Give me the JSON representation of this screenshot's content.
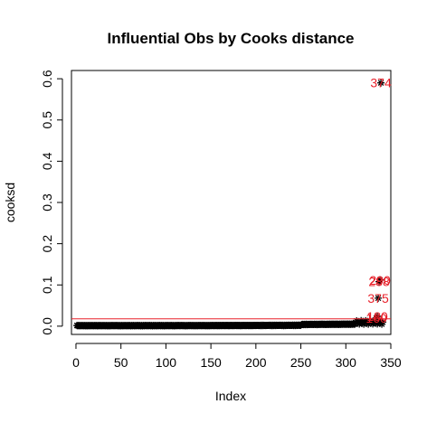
{
  "chart_data": {
    "type": "scatter",
    "title": "Influential Obs by Cooks distance",
    "xlabel": "Index",
    "ylabel": "cooksd",
    "xlim": [
      -5,
      350
    ],
    "ylim": [
      -0.02,
      0.62
    ],
    "xticks": [
      0,
      50,
      100,
      150,
      200,
      250,
      300,
      350
    ],
    "yticks": [
      0.0,
      0.1,
      0.2,
      0.3,
      0.4,
      0.5,
      0.6
    ],
    "ytick_labels": [
      "0.0",
      "0.1",
      "0.2",
      "0.3",
      "0.4",
      "0.5",
      "0.6"
    ],
    "threshold": 0.0177,
    "threshold_color": "#e8202a",
    "point_color": "#000000",
    "marker": "*",
    "n_obs": 341,
    "influential": [
      {
        "x": 339,
        "y": 0.59,
        "label": "374"
      },
      {
        "x": 338,
        "y": 0.112,
        "label": "290"
      },
      {
        "x": 337,
        "y": 0.108,
        "label": "288"
      },
      {
        "x": 336,
        "y": 0.068,
        "label": "375"
      },
      {
        "x": 335,
        "y": 0.024,
        "label": "180"
      },
      {
        "x": 334,
        "y": 0.02,
        "label": "160"
      }
    ]
  }
}
